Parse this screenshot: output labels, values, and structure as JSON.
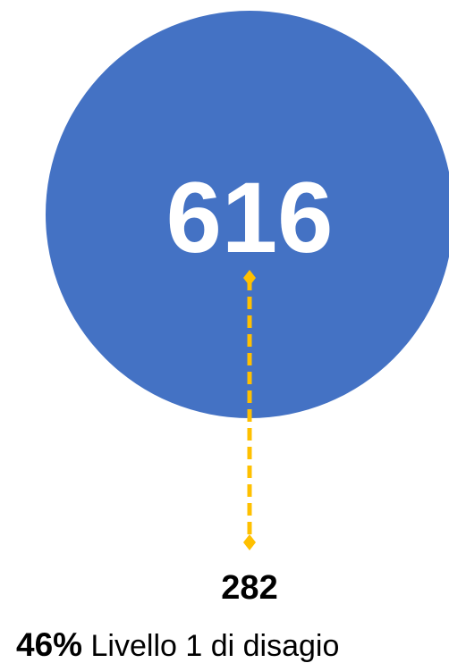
{
  "total": {
    "value": "616"
  },
  "subset": {
    "value": "282"
  },
  "share": {
    "percent": "46%",
    "label": "Livello 1 di disagio"
  }
}
